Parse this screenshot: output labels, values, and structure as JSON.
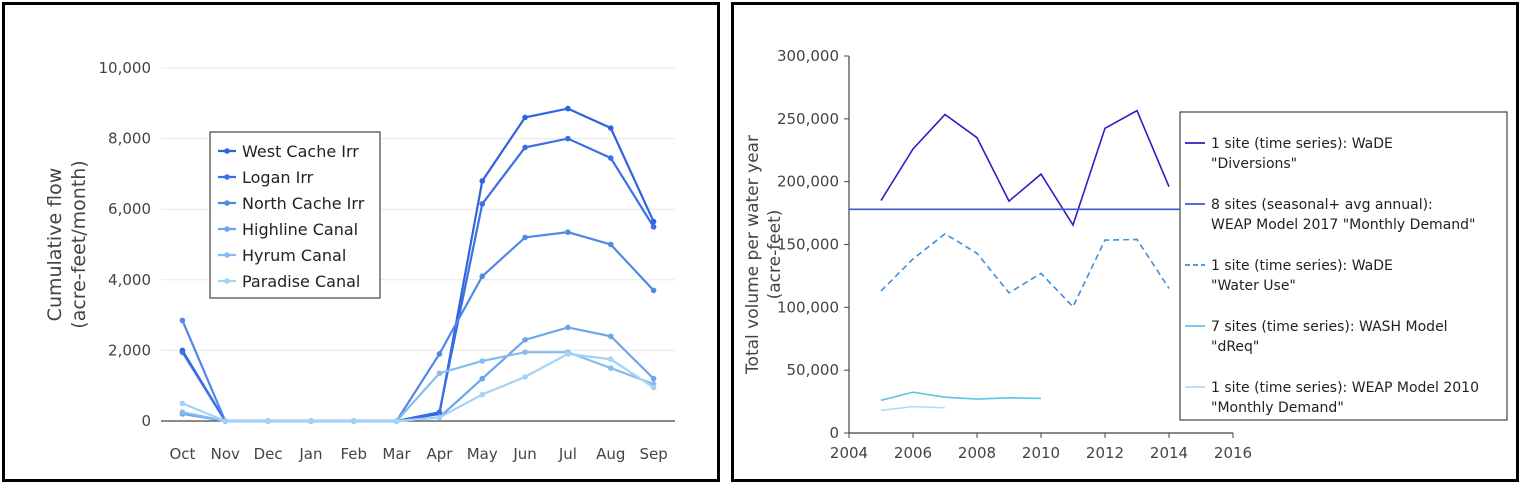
{
  "chart_data": [
    {
      "type": "line",
      "ylabel": [
        "Cumulative flow",
        "(acre-feet/month)"
      ],
      "xlabel": "",
      "categories": [
        "Oct",
        "Nov",
        "Dec",
        "Jan",
        "Feb",
        "Mar",
        "Apr",
        "May",
        "Jun",
        "Jul",
        "Aug",
        "Sep"
      ],
      "ylim": [
        0,
        10000
      ],
      "yticks": [
        0,
        2000,
        4000,
        6000,
        8000,
        10000
      ],
      "ytick_labels": [
        "0",
        "2,000",
        "4,000",
        "6,000",
        "8,000",
        "10,000"
      ],
      "grid": true,
      "legend_position": "upper-left",
      "series": [
        {
          "name": "West Cache Irr",
          "color": "#2f64e0",
          "values": [
            2000,
            0,
            0,
            0,
            0,
            0,
            200,
            6800,
            8600,
            8850,
            8300,
            5650
          ]
        },
        {
          "name": "Logan Irr",
          "color": "#3c6fe6",
          "values": [
            1950,
            0,
            0,
            0,
            0,
            0,
            250,
            6150,
            7750,
            8000,
            7450,
            5500
          ]
        },
        {
          "name": "North Cache Irr",
          "color": "#5088e6",
          "values": [
            2850,
            0,
            0,
            0,
            0,
            0,
            1900,
            4100,
            5200,
            5350,
            5000,
            3700
          ]
        },
        {
          "name": "Highline Canal",
          "color": "#6ea4ec",
          "values": [
            200,
            0,
            0,
            0,
            0,
            0,
            100,
            1200,
            2300,
            2650,
            2400,
            1200
          ]
        },
        {
          "name": "Hyrum Canal",
          "color": "#86bdf0",
          "values": [
            250,
            0,
            0,
            0,
            0,
            0,
            1350,
            1700,
            1950,
            1950,
            1500,
            1050
          ]
        },
        {
          "name": "Paradise Canal",
          "color": "#a3d4f6",
          "values": [
            500,
            0,
            0,
            0,
            0,
            0,
            100,
            750,
            1250,
            1900,
            1750,
            950
          ]
        }
      ]
    },
    {
      "type": "line",
      "ylabel": [
        "Total volume per water year",
        "(acre-feet)"
      ],
      "xlabel": "",
      "xlim": [
        2004,
        2016
      ],
      "xticks": [
        2004,
        2006,
        2008,
        2010,
        2012,
        2014,
        2016
      ],
      "xtick_labels": [
        "2004",
        "2006",
        "2008",
        "2010",
        "2012",
        "2014",
        "2016"
      ],
      "ylim": [
        0,
        300000
      ],
      "yticks": [
        0,
        50000,
        100000,
        150000,
        200000,
        250000,
        300000
      ],
      "ytick_labels": [
        "0",
        "50,000",
        "100,000",
        "150,000",
        "200,000",
        "250,000",
        "300,000"
      ],
      "grid": false,
      "legend_position": "right",
      "series": [
        {
          "name": [
            "1 site (time series): WaDE",
            "\"Diversions\""
          ],
          "color": "#2a1fc4",
          "dash": "solid",
          "x": [
            2005,
            2006,
            2007,
            2008,
            2009,
            2010,
            2011,
            2012,
            2013,
            2014
          ],
          "values": [
            185000,
            226000,
            253500,
            235000,
            184500,
            206000,
            165500,
            242500,
            256500,
            196000
          ]
        },
        {
          "name": [
            "8 sites (seasonal+ avg annual):",
            "WEAP Model 2017 \"Monthly Demand\""
          ],
          "color": "#3a5bd8",
          "dash": "solid",
          "x": [
            2004,
            2016
          ],
          "values": [
            178000,
            178000
          ]
        },
        {
          "name": [
            "1 site (time series): WaDE",
            "\"Water Use\""
          ],
          "color": "#3d8fe0",
          "dash": "dashed",
          "x": [
            2005,
            2006,
            2007,
            2008,
            2009,
            2010,
            2011,
            2012,
            2013,
            2014
          ],
          "values": [
            113000,
            138500,
            158500,
            143000,
            111500,
            127000,
            100500,
            153500,
            154000,
            115000
          ]
        },
        {
          "name": [
            "7 sites (time series): WASH Model",
            "\"dReq\""
          ],
          "color": "#5fc4e8",
          "dash": "solid",
          "x": [
            2005,
            2006,
            2007,
            2008,
            2009,
            2010
          ],
          "values": [
            26000,
            32500,
            28500,
            27000,
            28000,
            27500
          ]
        },
        {
          "name": [
            "1 site (time series): WEAP Model 2010",
            "\"Monthly Demand\""
          ],
          "color": "#a8e0f6",
          "dash": "solid",
          "x": [
            2005,
            2006,
            2007
          ],
          "values": [
            18000,
            21000,
            20000
          ]
        }
      ]
    }
  ]
}
